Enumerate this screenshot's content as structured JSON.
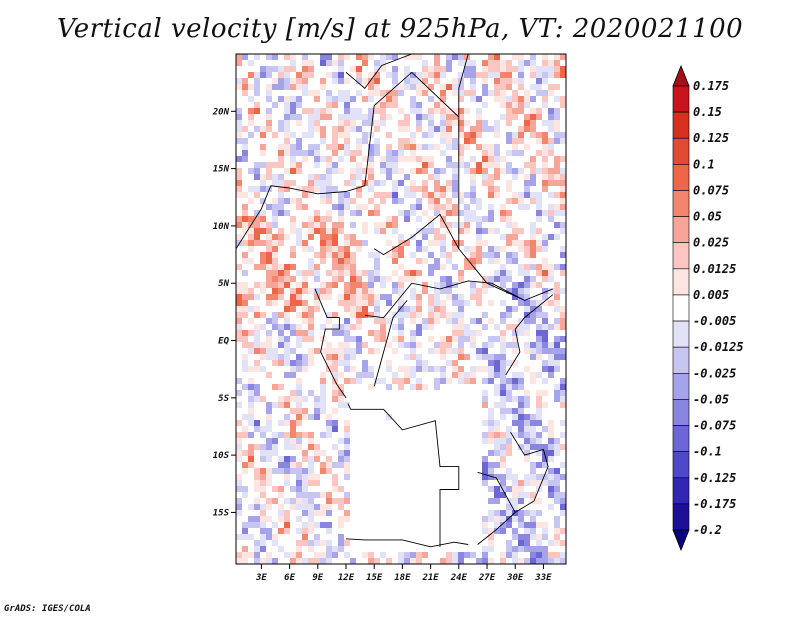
{
  "chart_data": {
    "type": "heatmap",
    "title": "Vertical velocity [m/s] at 925hPa, VT: 2020021100",
    "xlabel": "",
    "ylabel": "",
    "x_ticks": [
      "3E",
      "6E",
      "9E",
      "12E",
      "15E",
      "18E",
      "21E",
      "24E",
      "27E",
      "30E",
      "33E"
    ],
    "x_tick_values": [
      3,
      6,
      9,
      12,
      15,
      18,
      21,
      24,
      27,
      30,
      33
    ],
    "y_ticks": [
      "20N",
      "15N",
      "10N",
      "5N",
      "EQ",
      "5S",
      "10S",
      "15S"
    ],
    "y_tick_values": [
      20,
      15,
      10,
      5,
      0,
      -5,
      -10,
      -15
    ],
    "xlim": [
      0.3,
      35.4
    ],
    "ylim": [
      -19.5,
      25.0
    ],
    "grid": false,
    "legend": "colorbar-right",
    "colorbar_levels": [
      "0.175",
      "0.15",
      "0.125",
      "0.1",
      "0.075",
      "0.05",
      "0.025",
      "0.0125",
      "0.005",
      "-0.005",
      "-0.0125",
      "-0.025",
      "-0.05",
      "-0.075",
      "-0.1",
      "-0.125",
      "-0.175",
      "-0.2"
    ],
    "colorbar_colors": [
      "#a50f15",
      "#c8141c",
      "#d7301f",
      "#e34a33",
      "#ef6548",
      "#f4856d",
      "#f7a598",
      "#fcc5c0",
      "#fde6e2",
      "#ffffff",
      "#e1e1f8",
      "#c7c6f2",
      "#a6a3ea",
      "#8a86e0",
      "#6d67d6",
      "#4f48c8",
      "#3226b5",
      "#1d0f9a",
      "#0a0080"
    ]
  },
  "footer": {
    "credit": "GrADS: IGES/COLA"
  }
}
